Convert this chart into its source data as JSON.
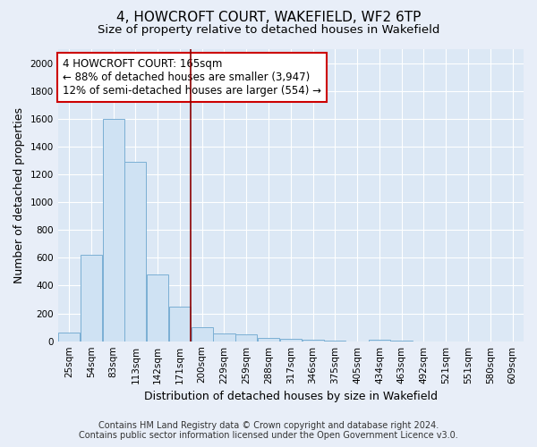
{
  "title": "4, HOWCROFT COURT, WAKEFIELD, WF2 6TP",
  "subtitle": "Size of property relative to detached houses in Wakefield",
  "xlabel": "Distribution of detached houses by size in Wakefield",
  "ylabel": "Number of detached properties",
  "categories": [
    "25sqm",
    "54sqm",
    "83sqm",
    "113sqm",
    "142sqm",
    "171sqm",
    "200sqm",
    "229sqm",
    "259sqm",
    "288sqm",
    "317sqm",
    "346sqm",
    "375sqm",
    "405sqm",
    "434sqm",
    "463sqm",
    "492sqm",
    "521sqm",
    "551sqm",
    "580sqm",
    "609sqm"
  ],
  "values": [
    60,
    620,
    1600,
    1290,
    480,
    250,
    100,
    55,
    50,
    25,
    20,
    10,
    5,
    0,
    10,
    5,
    0,
    0,
    0,
    0,
    0
  ],
  "bar_color": "#cfe2f3",
  "bar_edge_color": "#7bafd4",
  "red_line_x": 5,
  "annotation_title": "4 HOWCROFT COURT: 165sqm",
  "annotation_line1": "← 88% of detached houses are smaller (3,947)",
  "annotation_line2": "12% of semi-detached houses are larger (554) →",
  "footnote1": "Contains HM Land Registry data © Crown copyright and database right 2024.",
  "footnote2": "Contains public sector information licensed under the Open Government Licence v3.0.",
  "ylim": [
    0,
    2100
  ],
  "yticks": [
    0,
    200,
    400,
    600,
    800,
    1000,
    1200,
    1400,
    1600,
    1800,
    2000
  ],
  "bin_width": 1,
  "bg_color": "#e8eef8",
  "plot_bg_color": "#dce8f5",
  "grid_color": "#ffffff",
  "title_fontsize": 11,
  "subtitle_fontsize": 9.5,
  "axis_label_fontsize": 9,
  "tick_fontsize": 7.5,
  "annotation_fontsize": 8.5,
  "footnote_fontsize": 7
}
